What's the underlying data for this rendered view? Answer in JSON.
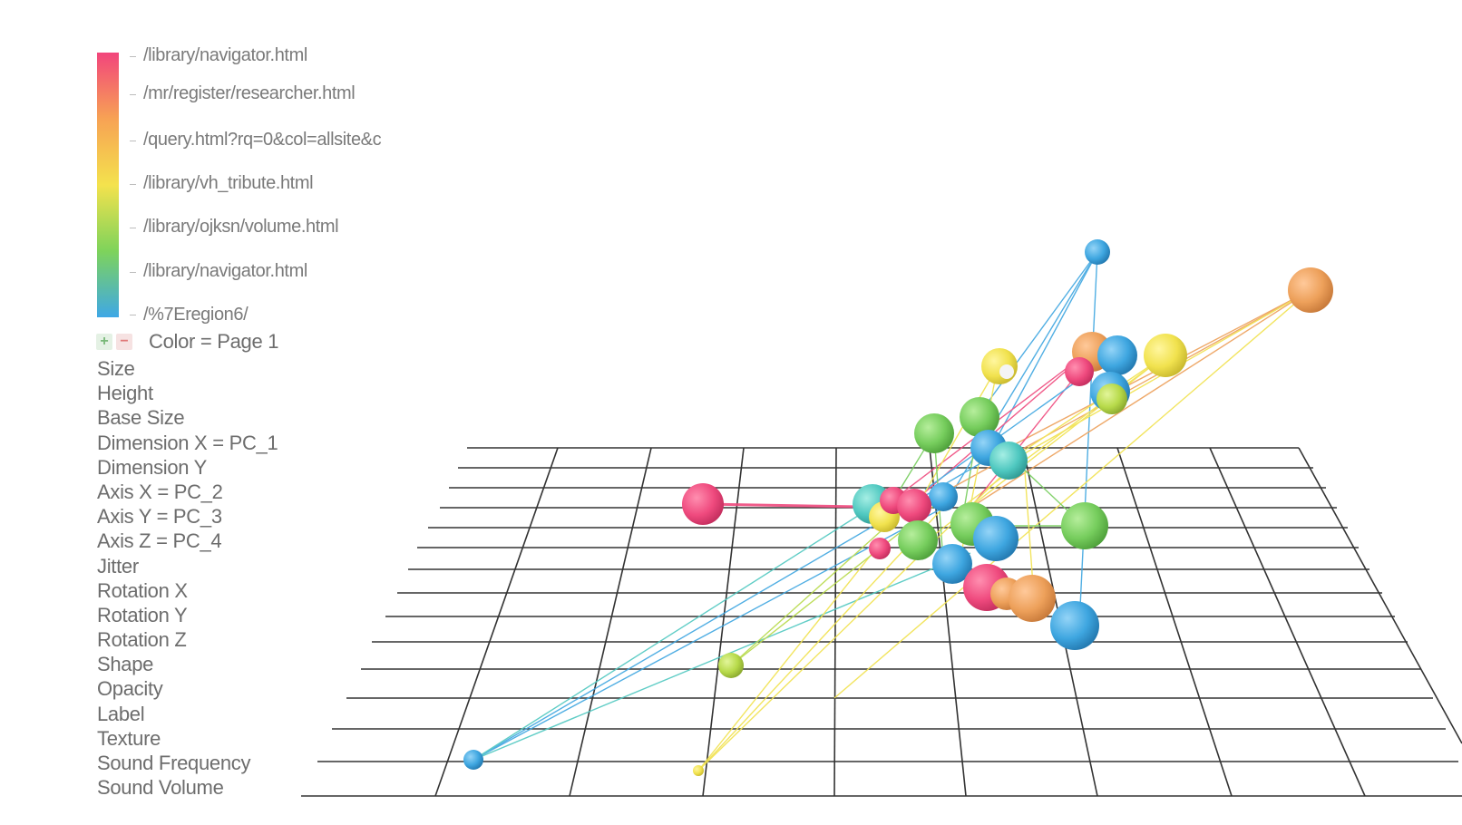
{
  "legend": {
    "title": "Color = Page 1",
    "labels": [
      "/library/navigator.html",
      "/mr/register/researcher.html",
      "/query.html?rq=0&col=allsite&c",
      "/library/vh_tribute.html",
      "/library/ojksn/volume.html",
      "/library/navigator.html",
      "/%7Eregion6/"
    ],
    "gradient_colors": [
      "#f2457c",
      "#f7a254",
      "#f4e24d",
      "#7ed35b",
      "#3fa8e6"
    ]
  },
  "mappings": [
    "Size",
    "Height",
    "Base Size",
    "Dimension X = PC_1",
    "Dimension Y",
    "Axis X = PC_2",
    "Axis Y = PC_3",
    "Axis Z = PC_4",
    "Jitter",
    "Rotation X",
    "Rotation Y",
    "Rotation Z",
    "Shape",
    "Opacity",
    "Label",
    "Texture",
    "Sound Frequency",
    "Sound Volume"
  ],
  "icons": {
    "add": "plus-icon",
    "remove": "minus-icon"
  },
  "colors": {
    "pink": "#ef4a7e",
    "orange": "#eda05a",
    "yellow": "#f1e24e",
    "green": "#76cd5d",
    "blue": "#3ea6e0",
    "grid": "#333333",
    "text": "#6d6d6d"
  }
}
